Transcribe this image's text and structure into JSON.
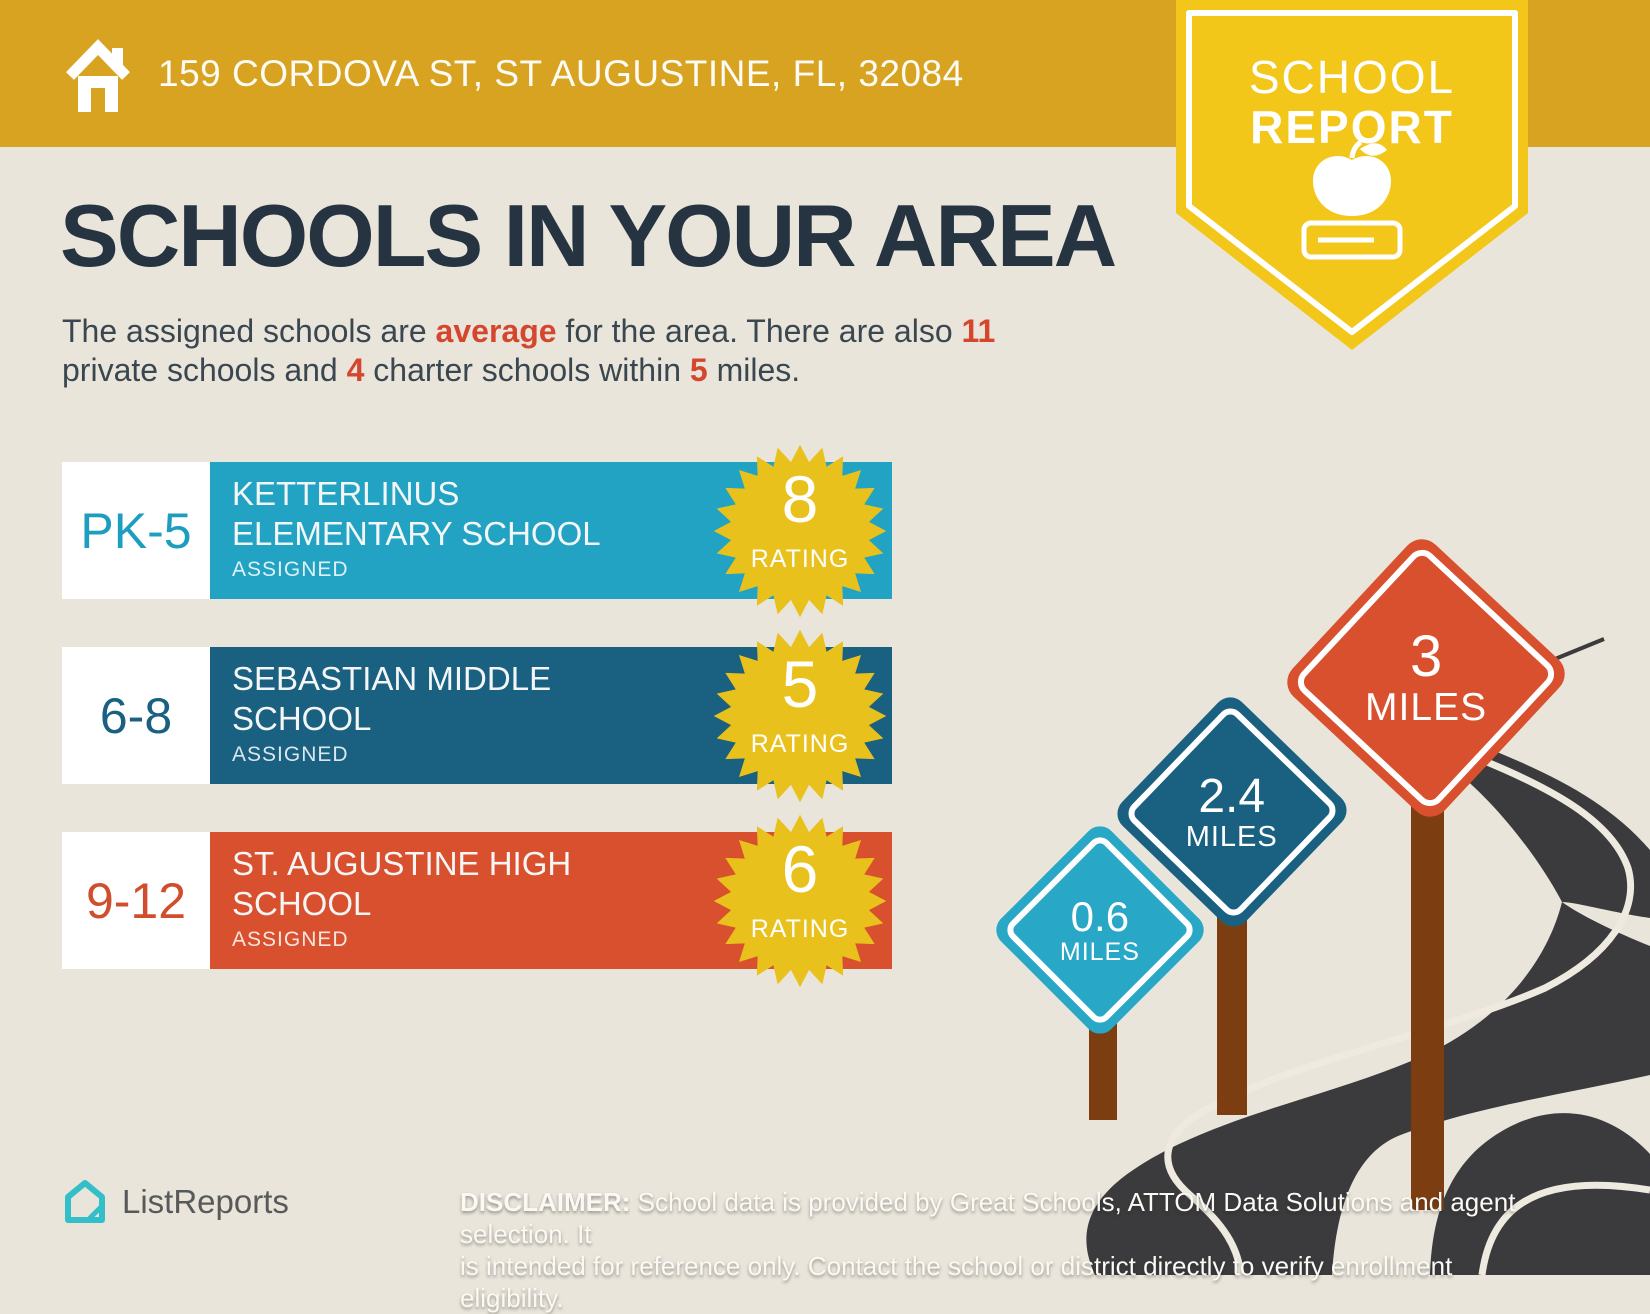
{
  "header": {
    "address": "159 CORDOVA ST, ST AUGUSTINE, FL, 32084"
  },
  "badge": {
    "line1": "SCHOOL",
    "line2": "REPORT",
    "icon": "apple-on-book-icon"
  },
  "title": "SCHOOLS IN YOUR AREA",
  "subtitle": {
    "pre": "The assigned schools are ",
    "accent1": "average",
    "mid1": " for the area. There are also ",
    "accent2": "11",
    "line2_pre": "private schools and ",
    "accent3": "4",
    "mid3": " charter schools within ",
    "accent4": "5",
    "post": " miles."
  },
  "schools": [
    {
      "grades": "PK-5",
      "name_line1": "KETTERLINUS",
      "name_line2": "ELEMENTARY SCHOOL",
      "status": "ASSIGNED",
      "rating": "8",
      "rating_label": "RATING",
      "bar_color": "#22A3C3"
    },
    {
      "grades": "6-8",
      "name_line1": "SEBASTIAN MIDDLE",
      "name_line2": "SCHOOL",
      "status": "ASSIGNED",
      "rating": "5",
      "rating_label": "RATING",
      "bar_color": "#1A6080"
    },
    {
      "grades": "9-12",
      "name_line1": "ST. AUGUSTINE HIGH",
      "name_line2": "SCHOOL",
      "status": "ASSIGNED",
      "rating": "6",
      "rating_label": "RATING",
      "bar_color": "#D8502E"
    }
  ],
  "distance_signs": [
    {
      "distance": "0.6",
      "unit": "MILES",
      "color": "#28A7C6"
    },
    {
      "distance": "2.4",
      "unit": "MILES",
      "color": "#1A6080"
    },
    {
      "distance": "3",
      "unit": "MILES",
      "color": "#D8502E"
    }
  ],
  "footer": {
    "logo_text": "ListReports",
    "disclaimer_label": "DISCLAIMER:",
    "disclaimer_line1": " School data is provided by Great Schools, ATTOM Data Solutions and agent selection. It",
    "disclaimer_line2": "is intended for reference only. Contact the school or district directly to verify enrollment eligibility."
  },
  "colors": {
    "header_gold": "#D7A321",
    "badge_yellow": "#F3C71A",
    "background_cream": "#EAE5DA",
    "title_navy": "#263442",
    "accent_red": "#D4472E",
    "elementary_cyan": "#22A3C3",
    "middle_blue": "#1A6080",
    "high_red": "#D8502E",
    "starburst_yellow": "#E9C11C",
    "road_gray": "#3B3A3C",
    "post_brown": "#7C3D11",
    "logo_teal": "#33BFC7"
  }
}
